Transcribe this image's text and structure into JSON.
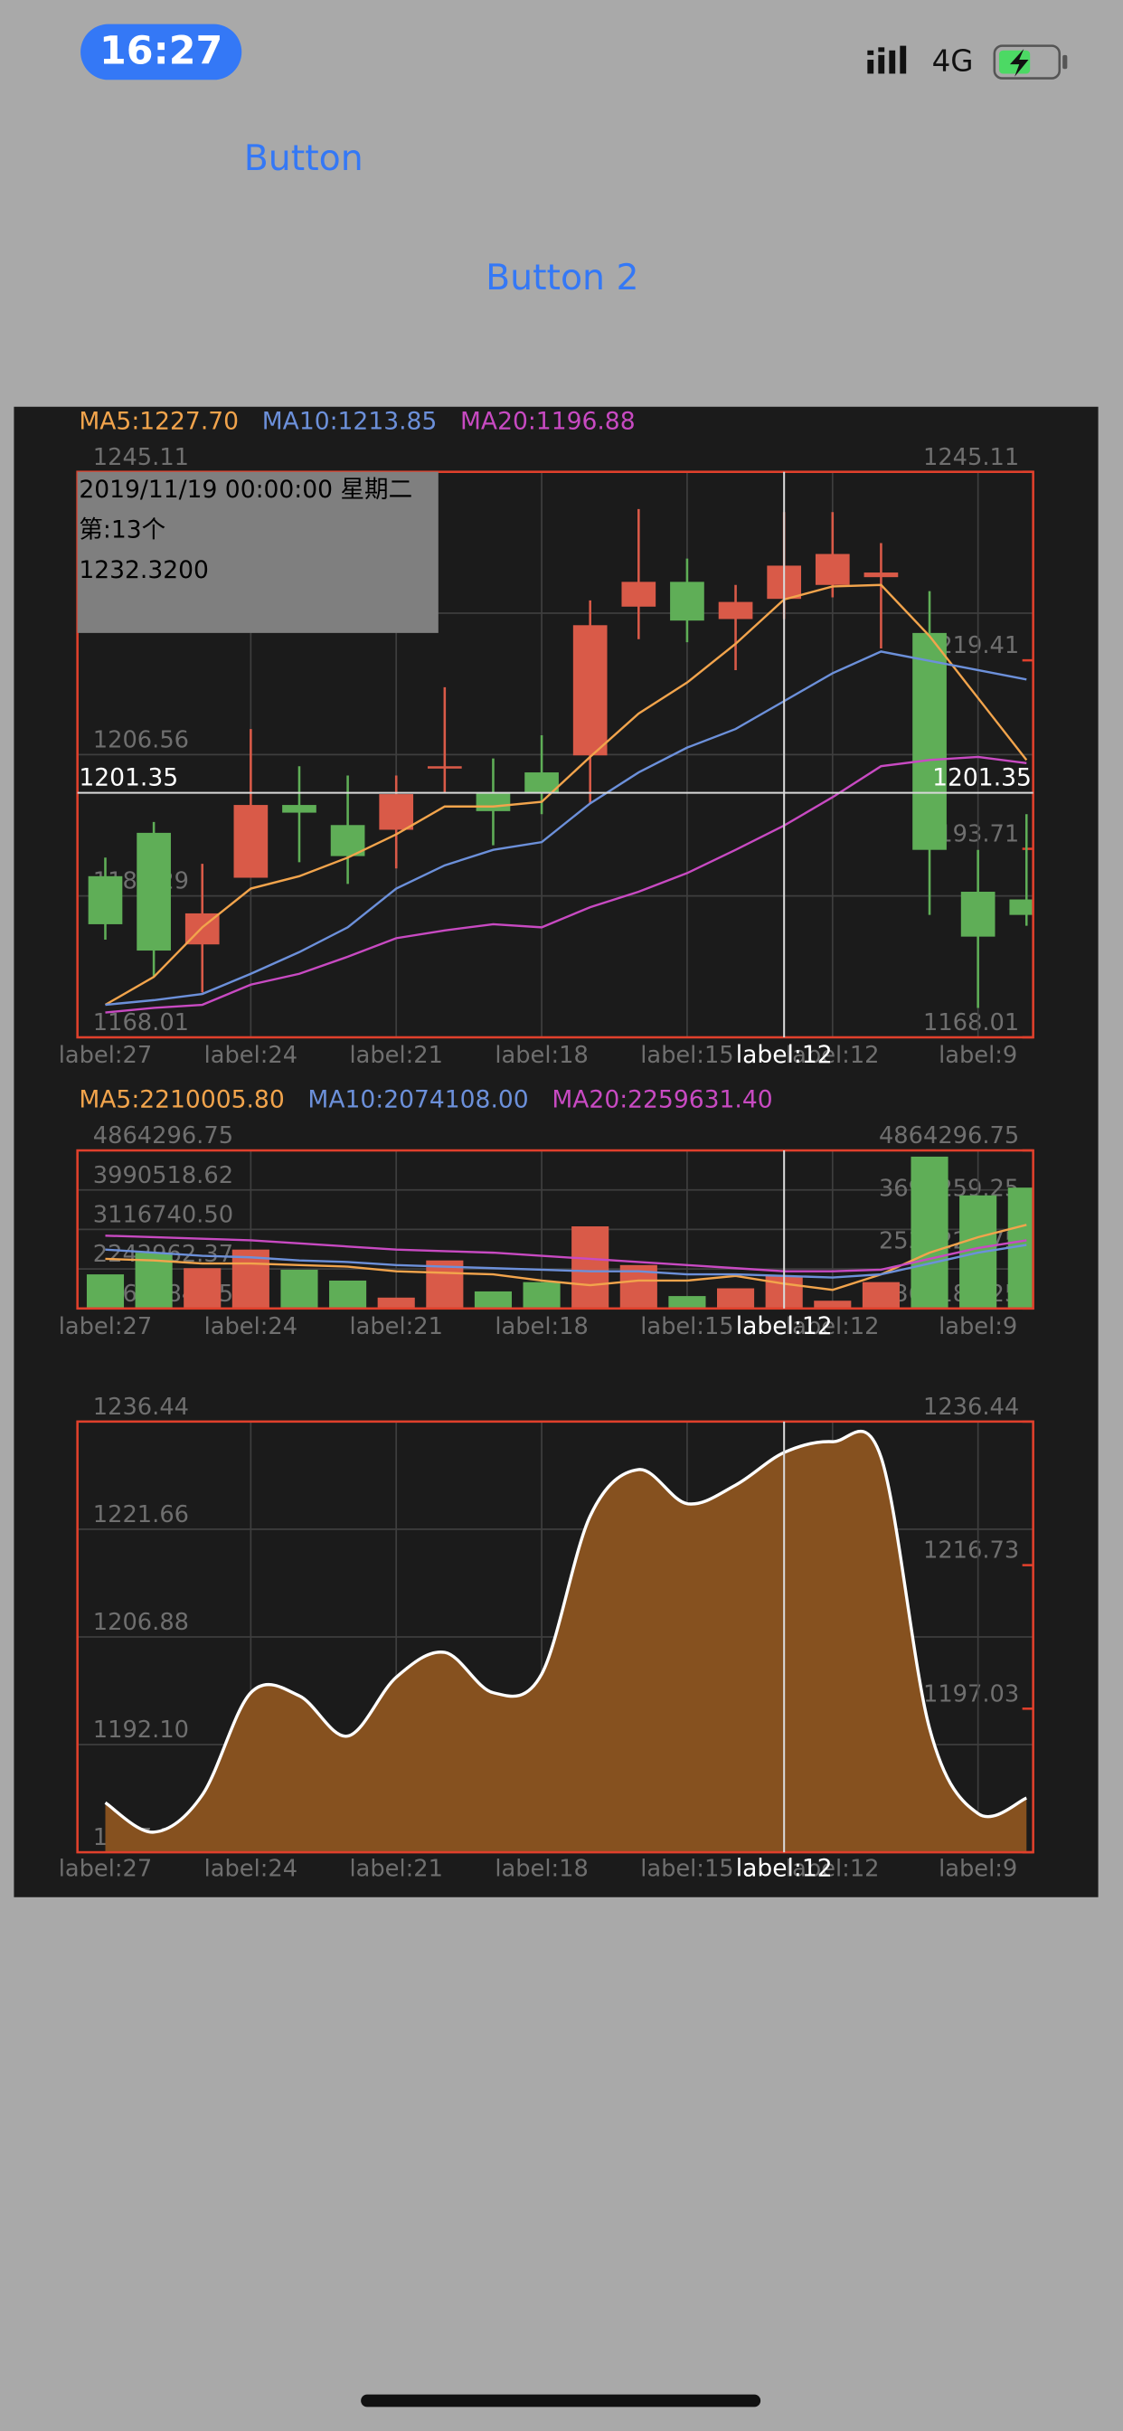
{
  "status_bar": {
    "time": "16:27",
    "network": "4G"
  },
  "buttons": [
    "Button",
    "Button 2"
  ],
  "chart_data": [
    {
      "type": "candlestick",
      "categories": [
        "label:27",
        null,
        null,
        "label:24",
        null,
        null,
        "label:21",
        null,
        null,
        "label:18",
        null,
        null,
        "label:15",
        null,
        null,
        "label:12",
        null,
        null,
        "label:9",
        null
      ],
      "open": [
        1189.98,
        1195.89,
        1180.68,
        1189.77,
        1199.69,
        1196.95,
        1196.31,
        1204.97,
        1201.38,
        1204.13,
        1206.45,
        1226.73,
        1230.11,
        1225.04,
        1227.79,
        1229.69,
        1230.75,
        1223.14,
        1187.86,
        1186.81
      ],
      "high": [
        1192.51,
        1197.37,
        1191.67,
        1210.04,
        1204.97,
        1203.71,
        1203.71,
        1215.75,
        1206.03,
        1209.2,
        1227.58,
        1240.04,
        1233.28,
        1229.69,
        1239.62,
        1239.62,
        1235.39,
        1228.84,
        1193.57,
        1198.43
      ],
      "low": [
        1181.32,
        1176.25,
        1174.13,
        1189.77,
        1191.88,
        1188.92,
        1191.03,
        1201.38,
        1194.2,
        1198.43,
        1199.91,
        1222.3,
        1221.87,
        1218.07,
        1225.04,
        1228.0,
        1221.03,
        1184.7,
        1172.02,
        1183.22
      ],
      "close": [
        1183.43,
        1179.84,
        1184.91,
        1199.69,
        1198.64,
        1192.72,
        1201.17,
        1204.97,
        1198.85,
        1201.38,
        1224.2,
        1230.11,
        1224.83,
        1227.37,
        1232.32,
        1233.91,
        1231.38,
        1193.57,
        1181.74,
        1184.7
      ],
      "up_color": "#d95a48",
      "down_color": "#5fae57",
      "series": [
        {
          "name": "MA5:1227.70",
          "color": "#f2a44c",
          "values": [
            1172.44,
            1176.25,
            1183.01,
            1188.29,
            1189.98,
            1192.51,
            1195.68,
            1199.48,
            1199.48,
            1200.12,
            1206.24,
            1212.16,
            1216.38,
            1221.66,
            1227.7,
            1229.48,
            1229.69,
            1222.72,
            1214.27,
            1205.82
          ]
        },
        {
          "name": "MA10:1213.85",
          "color": "#6c90da",
          "values": [
            1172.44,
            1173.08,
            1173.92,
            1176.67,
            1179.63,
            1183.01,
            1188.29,
            1191.46,
            1193.57,
            1194.62,
            1199.91,
            1204.13,
            1207.51,
            1210.04,
            1213.85,
            1217.65,
            1220.61,
            1219.34,
            1218.07,
            1216.8
          ]
        },
        {
          "name": "MA20:1196.88",
          "color": "#c84ac2",
          "values": [
            1171.39,
            1172.02,
            1172.44,
            1175.19,
            1176.67,
            1178.99,
            1181.53,
            1182.58,
            1183.43,
            1183.01,
            1185.75,
            1187.86,
            1190.4,
            1193.57,
            1196.88,
            1200.75,
            1204.97,
            1205.82,
            1206.24,
            1205.4
          ]
        }
      ],
      "ylim": [
        1168.01,
        1245.11
      ],
      "yticks": [
        1245.11,
        1225.84,
        1206.56,
        1187.29,
        1168.01
      ],
      "y2lim": [
        1168.01,
        1245.11
      ],
      "y2ticks": [
        1245.11,
        1219.41,
        1193.71,
        1168.01
      ],
      "crosshair": {
        "label": "label:12",
        "value": 1201.35
      },
      "tooltip": [
        "2019/11/19 00:00:00 星期二",
        "第:13个",
        "1232.3200"
      ],
      "grid": true
    },
    {
      "type": "volume",
      "categories": [
        "label:27",
        null,
        null,
        "label:24",
        null,
        null,
        "label:21",
        null,
        null,
        "label:18",
        null,
        null,
        "label:15",
        null,
        null,
        "label:12",
        null,
        null,
        "label:9",
        null
      ],
      "values": [
        2123032,
        2602753,
        2260095,
        2671284,
        2225829,
        1985968,
        1609045,
        2431424,
        1746108,
        1951703,
        3185271,
        2328626,
        1643310,
        1814639,
        2088766,
        1540513,
        1951703,
        4727232,
        3870587,
        4041916
      ],
      "series": [
        {
          "name": "MA5:2210005.80",
          "color": "#f2a44c",
          "values": [
            2465690,
            2431424,
            2362892,
            2362892,
            2328626,
            2294361,
            2191563,
            2157297,
            2123032,
            1985968,
            1883171,
            1985968,
            1985968,
            2088766,
            1917437,
            1780374,
            2123032,
            2602753,
            2945411,
            3219537
          ]
        },
        {
          "name": "MA10:2074108.00",
          "color": "#6c90da",
          "values": [
            2671284,
            2602753,
            2534221,
            2499955,
            2431424,
            2397158,
            2328626,
            2294361,
            2260095,
            2225829,
            2191563,
            2191563,
            2123032,
            2123032,
            2088766,
            2054500,
            2123032,
            2362892,
            2602753,
            2774082
          ]
        },
        {
          "name": "MA20:2259631.40",
          "color": "#c84ac2",
          "values": [
            2979677,
            2945411,
            2911145,
            2876879,
            2808348,
            2739816,
            2671284,
            2637019,
            2602753,
            2534221,
            2465690,
            2397158,
            2328626,
            2260095,
            2191563,
            2191563,
            2225829,
            2465690,
            2705550,
            2876879
          ]
        }
      ],
      "ylim": [
        1369184.25,
        4864296.75
      ],
      "yticks": [
        4864296.75,
        3990518.62,
        {
          "value": 3116740.5,
          "label": "3116740.50"
        },
        2242962.37,
        1369184.25
      ],
      "y2lim": [
        1369184.25,
        4864296.75
      ],
      "y2ticks": [
        4864296.75,
        3699259.25,
        2534221.75,
        1369184.25
      ],
      "crosshair": {
        "label": "label:12"
      },
      "grid": true
    },
    {
      "type": "area",
      "categories": [
        "label:27",
        null,
        null,
        "label:24",
        null,
        null,
        "label:21",
        null,
        null,
        "label:18",
        null,
        null,
        "label:15",
        null,
        null,
        "label:12",
        null,
        null,
        "label:9",
        null
      ],
      "values": [
        1184.12,
        1180.08,
        1185.19,
        1199.22,
        1198.8,
        1193.27,
        1201.35,
        1204.75,
        1199.22,
        1201.77,
        1223.47,
        1229.85,
        1225.17,
        1227.72,
        1232.19,
        1233.68,
        1231.55,
        1194.33,
        1182.63,
        1184.76
      ],
      "color": "#86511f",
      "line_color": "#ffffff",
      "ylim": [
        1177.32,
        1236.44
      ],
      "yticks": [
        1236.44,
        1221.66,
        1206.88,
        {
          "value": 1192.1,
          "label": "1192.10"
        },
        1177.32
      ],
      "y2lim": [
        1177.32,
        1236.44
      ],
      "y2ticks": [
        1236.44,
        1216.73,
        1197.03,
        1177.32
      ],
      "crosshair": {
        "label": "label:12"
      },
      "grid": true
    }
  ]
}
